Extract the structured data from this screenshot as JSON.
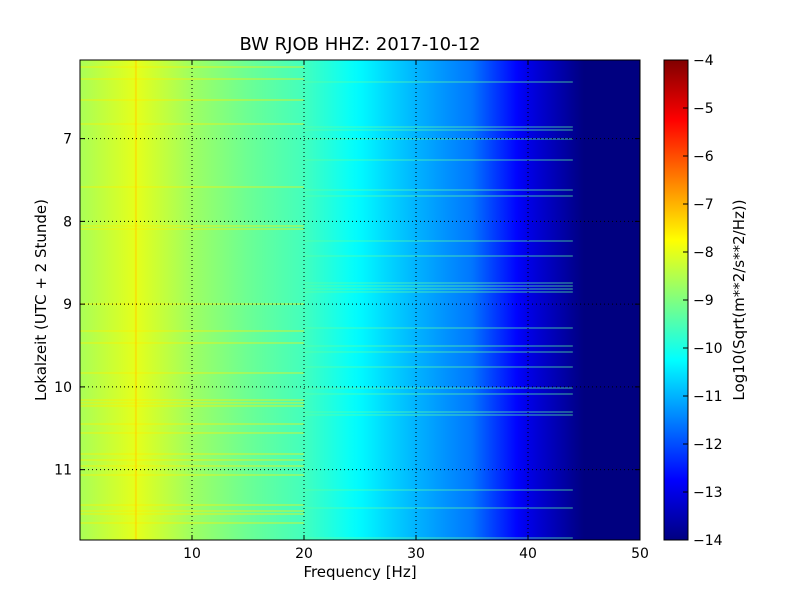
{
  "chart_data": {
    "type": "heatmap",
    "title": "BW RJOB HHZ: 2017-10-12",
    "xlabel": "Frequency [Hz]",
    "ylabel": "Lokalzeit (UTC + 2 Stunde)",
    "xlim": [
      0,
      50
    ],
    "ylim": [
      6.05,
      11.85
    ],
    "x_ticks": [
      10,
      20,
      30,
      40,
      50
    ],
    "y_ticks": [
      7,
      8,
      9,
      10,
      11
    ],
    "grid": true,
    "colormap": "jet",
    "colorbar": {
      "label": "Log10(Sqrt(m**2/s**2/Hz))",
      "range": [
        -14,
        -4
      ],
      "ticks": [
        -4,
        -5,
        -6,
        -7,
        -8,
        -9,
        -10,
        -11,
        -12,
        -13,
        -14
      ]
    },
    "level_profile": [
      {
        "freq": 0,
        "log10_amplitude": -8.6
      },
      {
        "freq": 5,
        "log10_amplitude": -8.0
      },
      {
        "freq": 10,
        "log10_amplitude": -8.7
      },
      {
        "freq": 15,
        "log10_amplitude": -9.2
      },
      {
        "freq": 20,
        "log10_amplitude": -9.6
      },
      {
        "freq": 25,
        "log10_amplitude": -10.3
      },
      {
        "freq": 30,
        "log10_amplitude": -11.0
      },
      {
        "freq": 35,
        "log10_amplitude": -11.6
      },
      {
        "freq": 40,
        "log10_amplitude": -13.0
      },
      {
        "freq": 45,
        "log10_amplitude": -14.0
      },
      {
        "freq": 50,
        "log10_amplitude": -14.0
      }
    ]
  },
  "colors": {
    "jet_stops": [
      "#000080",
      "#0000ff",
      "#0080ff",
      "#00ffff",
      "#80ff80",
      "#ffff00",
      "#ff8000",
      "#ff0000",
      "#800000"
    ]
  }
}
